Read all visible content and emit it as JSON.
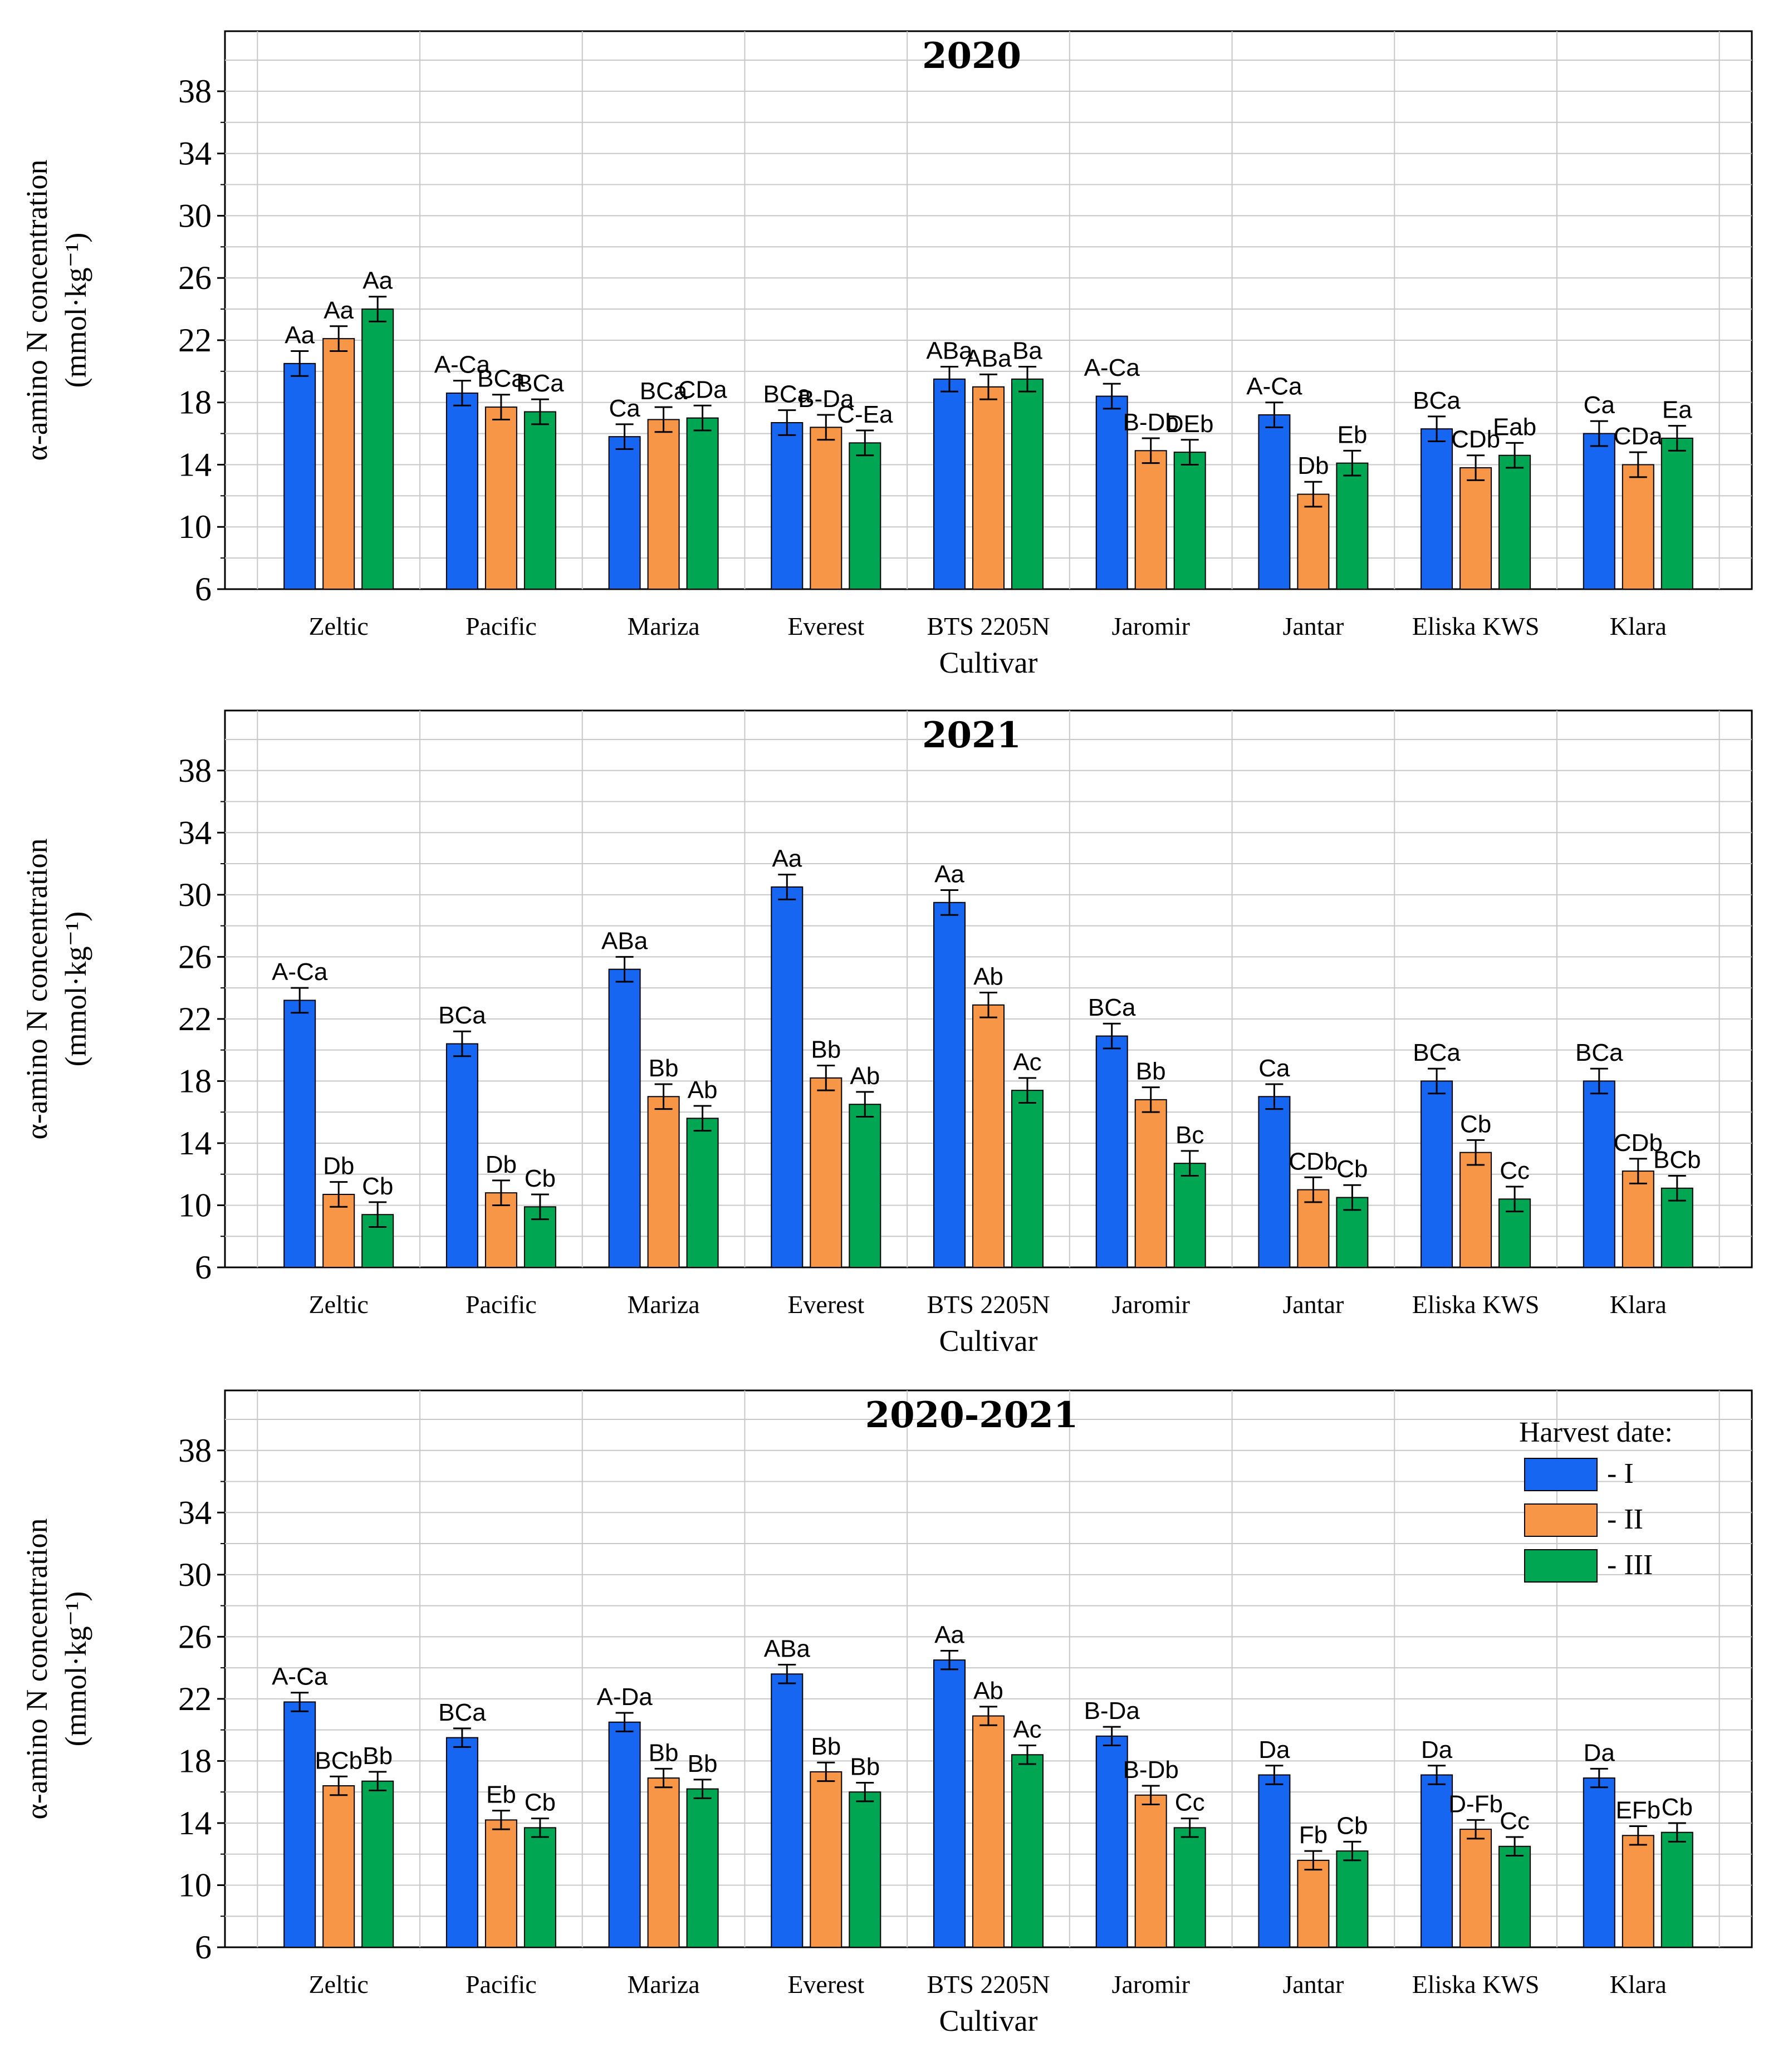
{
  "chart_data": [
    {
      "type": "bar",
      "title": "2020",
      "xlabel": "Cultivar",
      "ylabel": "α-amino N concentration (mmol·kg⁻¹)",
      "ylim": [
        6,
        40
      ],
      "yticks": [
        6,
        10,
        14,
        18,
        22,
        26,
        30,
        34,
        38
      ],
      "grid": true,
      "categories": [
        "Zeltic",
        "Pacific",
        "Mariza",
        "Everest",
        "BTS 2205N",
        "Jaromir",
        "Jantar",
        "Eliska KWS",
        "Klara"
      ],
      "series": [
        {
          "name": "- I",
          "color": "#1766f2",
          "values": [
            20.5,
            18.6,
            15.8,
            16.7,
            19.5,
            18.4,
            17.2,
            16.3,
            16.0
          ],
          "errors": [
            0.8,
            0.8,
            0.8,
            0.8,
            0.8,
            0.8,
            0.8,
            0.8,
            0.8
          ],
          "labels": [
            "Aa",
            "A-Ca",
            "Ca",
            "BCa",
            "ABa",
            "A-Ca",
            "A-Ca",
            "BCa",
            "Ca"
          ]
        },
        {
          "name": "- II",
          "color": "#f79646",
          "values": [
            22.1,
            17.7,
            16.9,
            16.4,
            19.0,
            14.9,
            12.1,
            13.8,
            14.0
          ],
          "errors": [
            0.8,
            0.8,
            0.8,
            0.8,
            0.8,
            0.8,
            0.8,
            0.8,
            0.8
          ],
          "labels": [
            "Aa",
            "BCa",
            "BCa",
            "B-Da",
            "ABa",
            "B-Db",
            "Db",
            "CDb",
            "CDa"
          ]
        },
        {
          "name": "- III",
          "color": "#00a651",
          "values": [
            24.0,
            17.4,
            17.0,
            15.4,
            19.5,
            14.8,
            14.1,
            14.6,
            15.7
          ],
          "errors": [
            0.8,
            0.8,
            0.8,
            0.8,
            0.8,
            0.8,
            0.8,
            0.8,
            0.8
          ],
          "labels": [
            "Aa",
            "BCa",
            "CDa",
            "C-Ea",
            "Ba",
            "DEb",
            "Eb",
            "Eab",
            "Ea"
          ]
        }
      ]
    },
    {
      "type": "bar",
      "title": "2021",
      "xlabel": "Cultivar",
      "ylabel": "α-amino N concentration (mmol·kg⁻¹)",
      "ylim": [
        6,
        40
      ],
      "yticks": [
        6,
        10,
        14,
        18,
        22,
        26,
        30,
        34,
        38
      ],
      "grid": true,
      "categories": [
        "Zeltic",
        "Pacific",
        "Mariza",
        "Everest",
        "BTS 2205N",
        "Jaromir",
        "Jantar",
        "Eliska KWS",
        "Klara"
      ],
      "series": [
        {
          "name": "- I",
          "color": "#1766f2",
          "values": [
            23.2,
            20.4,
            25.2,
            30.5,
            29.5,
            20.9,
            17.0,
            18.0,
            18.0
          ],
          "errors": [
            0.8,
            0.8,
            0.8,
            0.8,
            0.8,
            0.8,
            0.8,
            0.8,
            0.8
          ],
          "labels": [
            "A-Ca",
            "BCa",
            "ABa",
            "Aa",
            "Aa",
            "BCa",
            "Ca",
            "BCa",
            "BCa"
          ]
        },
        {
          "name": "- II",
          "color": "#f79646",
          "values": [
            10.7,
            10.8,
            17.0,
            18.2,
            22.9,
            16.8,
            11.0,
            13.4,
            12.2
          ],
          "errors": [
            0.8,
            0.8,
            0.8,
            0.8,
            0.8,
            0.8,
            0.8,
            0.8,
            0.8
          ],
          "labels": [
            "Db",
            "Db",
            "Bb",
            "Bb",
            "Ab",
            "Bb",
            "CDb",
            "Cb",
            "CDb"
          ]
        },
        {
          "name": "- III",
          "color": "#00a651",
          "values": [
            9.4,
            9.9,
            15.6,
            16.5,
            17.4,
            12.7,
            10.5,
            10.4,
            11.1
          ],
          "errors": [
            0.8,
            0.8,
            0.8,
            0.8,
            0.8,
            0.8,
            0.8,
            0.8,
            0.8
          ],
          "labels": [
            "Cb",
            "Cb",
            "Ab",
            "Ab",
            "Ac",
            "Bc",
            "Cb",
            "Cc",
            "BCb"
          ]
        }
      ]
    },
    {
      "type": "bar",
      "title": "2020-2021",
      "xlabel": "Cultivar",
      "ylabel": "α-amino N concentration (mmol·kg⁻¹)",
      "ylim": [
        6,
        40
      ],
      "yticks": [
        6,
        10,
        14,
        18,
        22,
        26,
        30,
        34,
        38
      ],
      "grid": true,
      "legend": {
        "title": "Harvest date:",
        "position": "top-right"
      },
      "categories": [
        "Zeltic",
        "Pacific",
        "Mariza",
        "Everest",
        "BTS 2205N",
        "Jaromir",
        "Jantar",
        "Eliska KWS",
        "Klara"
      ],
      "series": [
        {
          "name": "- I",
          "color": "#1766f2",
          "values": [
            21.8,
            19.5,
            20.5,
            23.6,
            24.5,
            19.6,
            17.1,
            17.1,
            16.9
          ],
          "errors": [
            0.6,
            0.6,
            0.6,
            0.6,
            0.6,
            0.6,
            0.6,
            0.6,
            0.6
          ],
          "labels": [
            "A-Ca",
            "BCa",
            "A-Da",
            "ABa",
            "Aa",
            "B-Da",
            "Da",
            "Da",
            "Da"
          ]
        },
        {
          "name": "- II",
          "color": "#f79646",
          "values": [
            16.4,
            14.2,
            16.9,
            17.3,
            20.9,
            15.8,
            11.6,
            13.6,
            13.2
          ],
          "errors": [
            0.6,
            0.6,
            0.6,
            0.6,
            0.6,
            0.6,
            0.6,
            0.6,
            0.6
          ],
          "labels": [
            "BCb",
            "Eb",
            "Bb",
            "Bb",
            "Ab",
            "B-Db",
            "Fb",
            "D-Fb",
            "EFb"
          ]
        },
        {
          "name": "- III",
          "color": "#00a651",
          "values": [
            16.7,
            13.7,
            16.2,
            16.0,
            18.4,
            13.7,
            12.2,
            12.5,
            13.4
          ],
          "errors": [
            0.6,
            0.6,
            0.6,
            0.6,
            0.6,
            0.6,
            0.6,
            0.6,
            0.6
          ],
          "labels": [
            "Bb",
            "Cb",
            "Bb",
            "Bb",
            "Ac",
            "Cc",
            "Cb",
            "Cc",
            "Cb"
          ]
        }
      ]
    }
  ]
}
